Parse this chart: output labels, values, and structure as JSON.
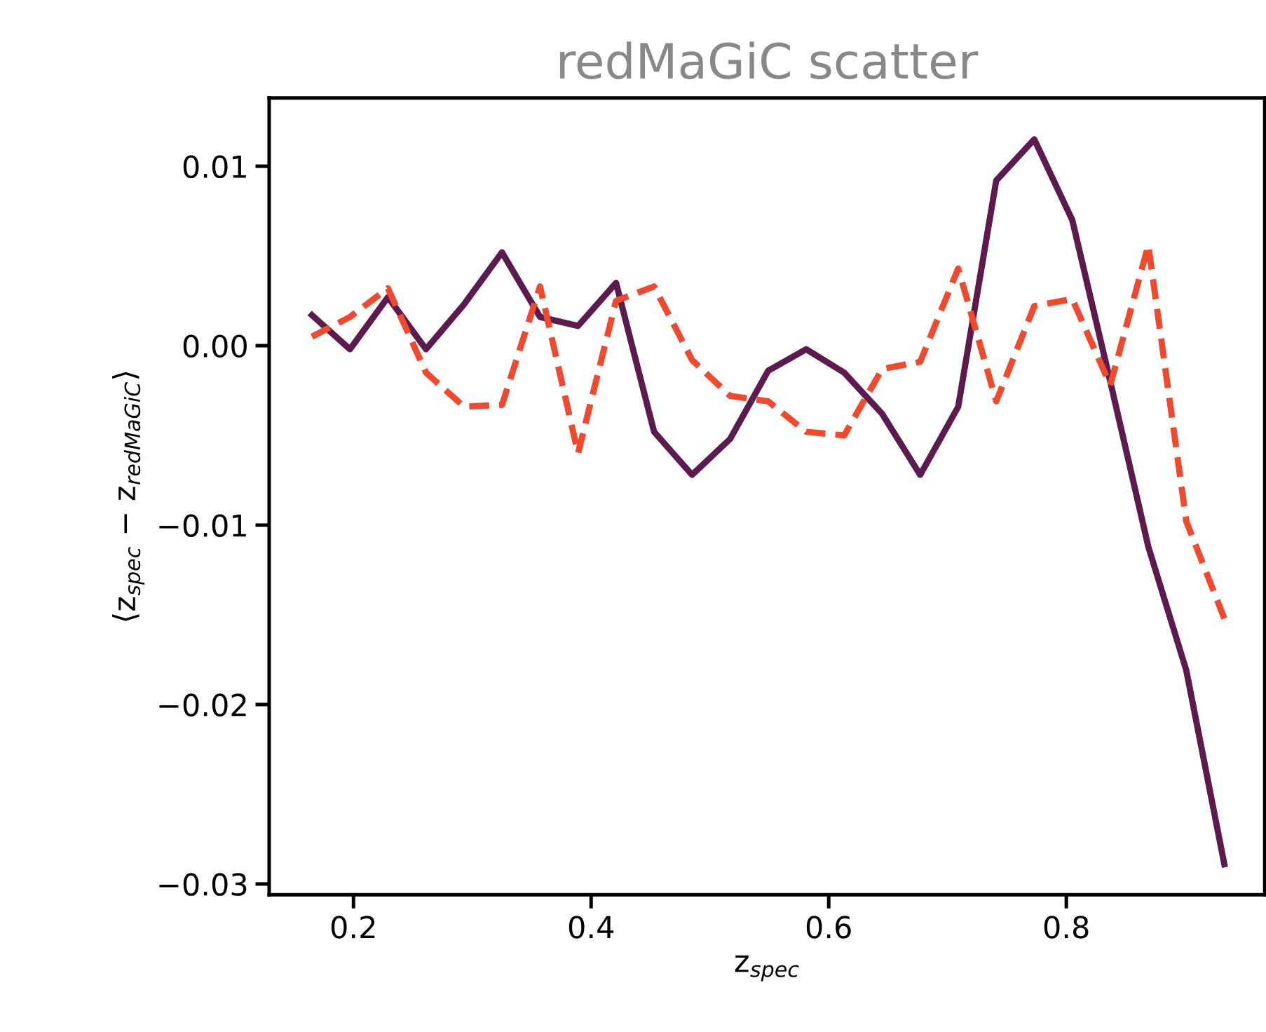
{
  "chart_data": {
    "type": "line",
    "title": "redMaGiC scatter",
    "xlabel": "z$_{spec}$",
    "ylabel": "⟨z$_{spec}$ − z$_{redMaGiC}$⟩",
    "x": [
      0.165,
      0.197,
      0.229,
      0.261,
      0.293,
      0.325,
      0.357,
      0.389,
      0.421,
      0.453,
      0.485,
      0.517,
      0.549,
      0.581,
      0.613,
      0.645,
      0.677,
      0.709,
      0.741,
      0.773,
      0.805,
      0.837,
      0.869,
      0.901,
      0.933
    ],
    "series": [
      {
        "color": "#5c1a4e",
        "line_style": "solid",
        "values": [
          0.0017,
          -0.0002,
          0.0027,
          -0.0002,
          0.0023,
          0.0052,
          0.0016,
          0.0011,
          0.0035,
          -0.0048,
          -0.0072,
          -0.0052,
          -0.0014,
          -0.0002,
          -0.0015,
          -0.0038,
          -0.0072,
          -0.0034,
          0.0092,
          0.0115,
          0.007,
          -0.002,
          -0.0112,
          -0.0181,
          -0.0289
        ]
      },
      {
        "color": "#f0492e",
        "line_style": "dashed",
        "values": [
          0.0005,
          0.0016,
          0.0032,
          -0.0015,
          -0.0034,
          -0.0033,
          0.0033,
          -0.006,
          0.0025,
          0.0033,
          -0.0008,
          -0.0028,
          -0.0031,
          -0.0048,
          -0.005,
          -0.0013,
          -0.0009,
          0.0043,
          -0.0031,
          0.0022,
          0.0026,
          -0.0022,
          0.0056,
          -0.0098,
          -0.0152
        ]
      }
    ],
    "xlim": [
      0.129,
      0.967
    ],
    "ylim": [
      -0.0306,
      0.0138
    ],
    "xticks": [
      {
        "value": 0.2,
        "label": "0.2"
      },
      {
        "value": 0.4,
        "label": "0.4"
      },
      {
        "value": 0.6,
        "label": "0.6"
      },
      {
        "value": 0.8,
        "label": "0.8"
      }
    ],
    "yticks": [
      {
        "value": -0.03,
        "label": "−0.03"
      },
      {
        "value": -0.02,
        "label": "−0.02"
      },
      {
        "value": -0.01,
        "label": "−0.01"
      },
      {
        "value": 0.0,
        "label": "0.00"
      },
      {
        "value": 0.01,
        "label": "0.01"
      }
    ],
    "grid": false,
    "legend": false
  }
}
